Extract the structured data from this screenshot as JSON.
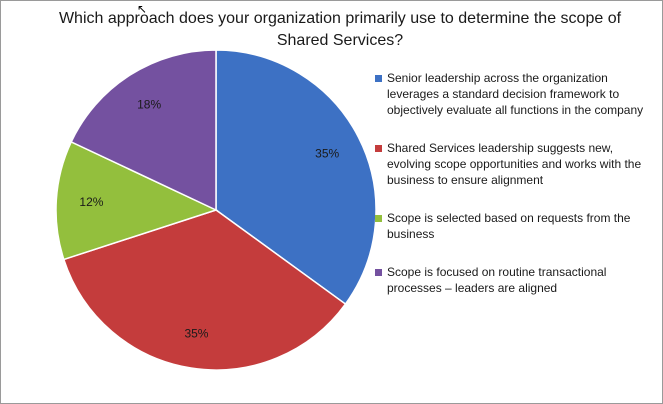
{
  "chart_data": {
    "type": "pie",
    "title": "Which approach does your organization primarily use to determine the scope of\nShared Services?",
    "legend_position": "right",
    "slices": [
      {
        "label": "Senior leadership across the organization leverages a standard decision framework to objectively evaluate all functions in the company",
        "value": 35,
        "display": "35%",
        "color": "#3d71c4"
      },
      {
        "label": "Shared Services leadership suggests new, evolving scope opportunities and works with the business to ensure alignment",
        "value": 35,
        "display": "35%",
        "color": "#c43c3c"
      },
      {
        "label": "Scope is selected based on requests from the business",
        "value": 12,
        "display": "12%",
        "color": "#93bf3d"
      },
      {
        "label": "Scope is focused on routine transactional processes – leaders are aligned",
        "value": 18,
        "display": "18%",
        "color": "#7451a0"
      }
    ]
  }
}
